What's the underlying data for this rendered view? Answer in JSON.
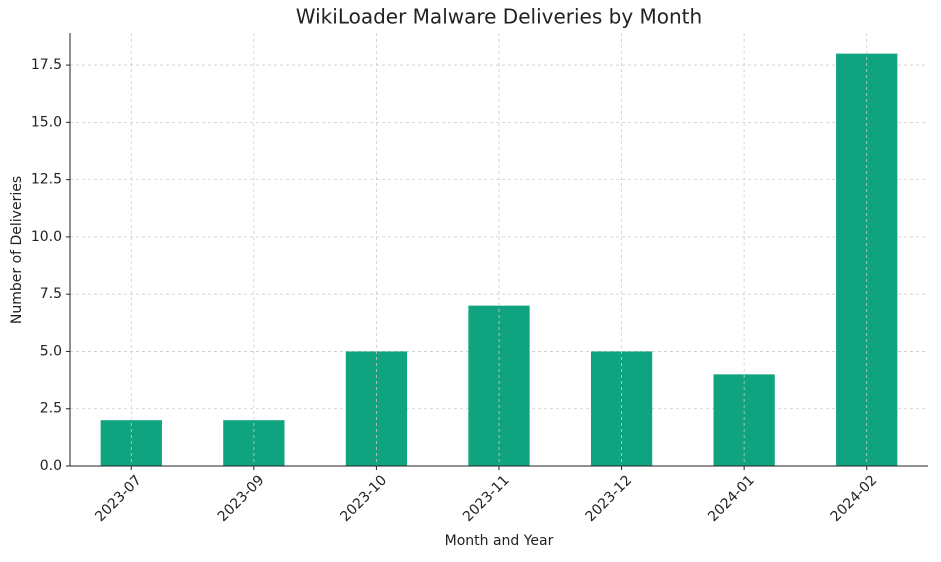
{
  "chart_data": {
    "type": "bar",
    "title": "WikiLoader Malware Deliveries by Month",
    "x_label": "Month and Year",
    "y_label": "Number of Deliveries",
    "categories": [
      "2023-07",
      "2023-09",
      "2023-10",
      "2023-11",
      "2023-12",
      "2024-01",
      "2024-02"
    ],
    "values": [
      2,
      2,
      5,
      7,
      5,
      4,
      18
    ],
    "color": "#10a37f",
    "ylim": [
      0,
      18.9
    ],
    "yticks": [
      {
        "value": 0,
        "label": "0.0"
      },
      2.5,
      {
        "value": 5,
        "label": "5.0"
      },
      7.5,
      {
        "value": 10,
        "label": "10.0"
      },
      12.5,
      {
        "value": 15,
        "label": "15.0"
      },
      17.5
    ],
    "grid": true
  }
}
